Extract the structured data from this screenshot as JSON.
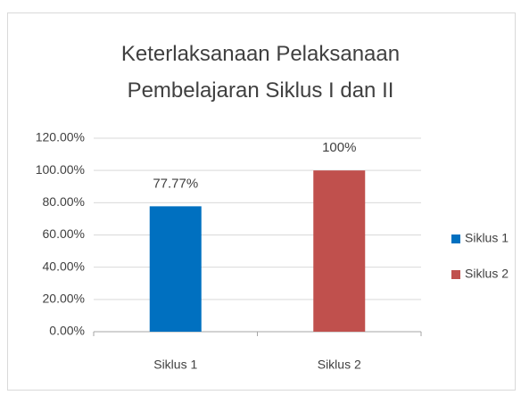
{
  "chart_data": {
    "type": "bar",
    "title": "Keterlaksanaan Pelaksanaan Pembelajaran Siklus I dan II",
    "categories": [
      "Siklus 1",
      "Siklus 2"
    ],
    "series": [
      {
        "name": "Siklus 1",
        "color": "#0070c0",
        "values": [
          77.77,
          null
        ],
        "value_labels": [
          "77.77%",
          null
        ]
      },
      {
        "name": "Siklus 2",
        "color": "#c0504d",
        "values": [
          null,
          100
        ],
        "value_labels": [
          null,
          "100%"
        ]
      }
    ],
    "ylim": [
      0,
      120
    ],
    "yticks": [
      {
        "value": 0,
        "label": "0.00%"
      },
      {
        "value": 20,
        "label": "20.00%"
      },
      {
        "value": 40,
        "label": "40.00%"
      },
      {
        "value": 60,
        "label": "60.00%"
      },
      {
        "value": 80,
        "label": "80.00%"
      },
      {
        "value": 100,
        "label": "100.00%"
      },
      {
        "value": 120,
        "label": "120.00%"
      }
    ],
    "grid": true,
    "legend": "right"
  }
}
